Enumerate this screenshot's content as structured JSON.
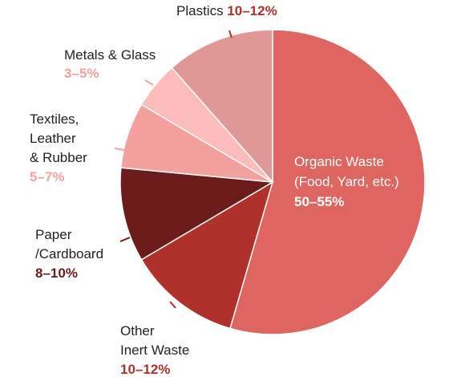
{
  "chart_data": {
    "type": "pie",
    "slices": [
      {
        "name": "Organic Waste",
        "sub": "(Food, Yard, etc.)",
        "label_lines": [],
        "range": "50–55%",
        "value": 54.5,
        "color": "#de6560",
        "range_color": "#ffffff",
        "text_color": "#ffffff"
      },
      {
        "name": "Other Inert Waste",
        "label_lines": [
          "Other",
          "Inert Waste"
        ],
        "range": "10–12%",
        "value": 12,
        "color": "#b0302b",
        "range_color": "#b0302b",
        "text_color": "#222222"
      },
      {
        "name": "Paper /Cardboard",
        "label_lines": [
          "Paper",
          "/Cardboard"
        ],
        "range": "8–10%",
        "value": 10,
        "color": "#6a1b1a",
        "range_color": "#6a1b1a",
        "text_color": "#222222"
      },
      {
        "name": "Textiles, Leather & Rubber",
        "label_lines": [
          "Textiles,",
          "Leather",
          "& Rubber"
        ],
        "range": "5–7%",
        "value": 7,
        "color": "#f4a19d",
        "range_color": "#f4a19d",
        "text_color": "#222222"
      },
      {
        "name": "Metals & Glass",
        "label_lines": [
          "Metals & Glass"
        ],
        "range": "3–5%",
        "value": 5,
        "color": "#fbbcba",
        "range_color": "#f4a19d",
        "text_color": "#222222"
      },
      {
        "name": "Plastics",
        "label_lines": [
          "Plastics"
        ],
        "range": "10–12%",
        "value": 11.5,
        "color": "#e09896",
        "range_color": "#b0302b",
        "text_color": "#222222"
      }
    ]
  }
}
